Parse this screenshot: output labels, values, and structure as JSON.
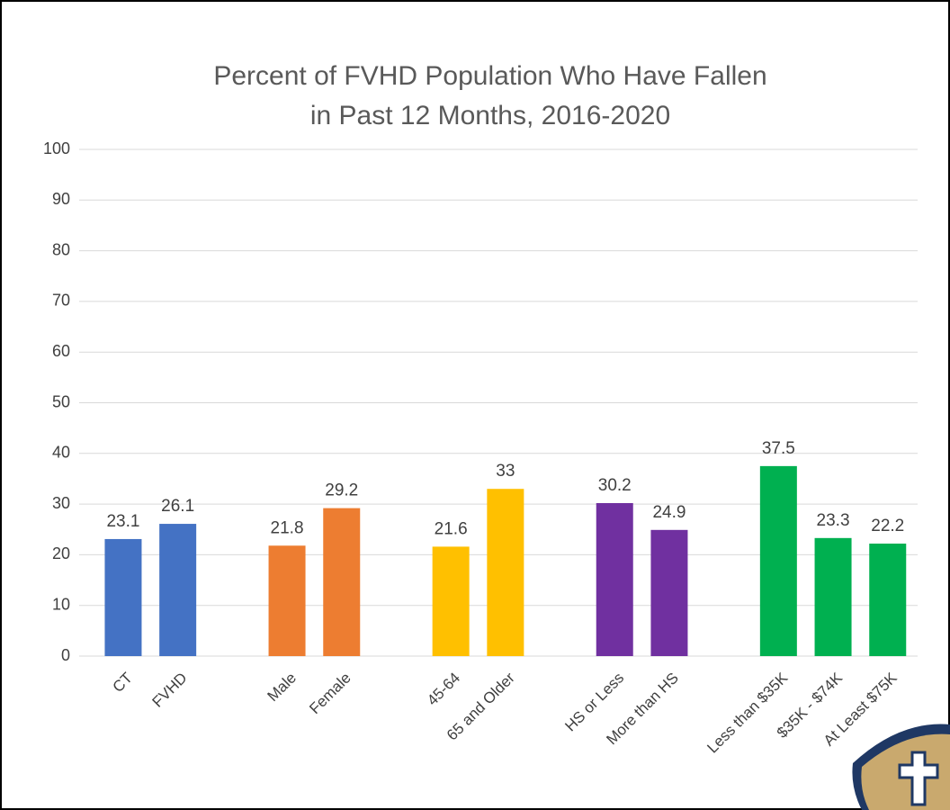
{
  "chart_data": {
    "type": "bar",
    "title": [
      "Percent of FVHD Population Who Have Fallen",
      "in Past 12 Months, 2016-2020"
    ],
    "categories": [
      "CT",
      "FVHD",
      null,
      "Male",
      "Female",
      null,
      "45-64",
      "65 and Older",
      null,
      "HS or Less",
      "More than HS",
      null,
      "Less than $35K",
      "$35K - $74K",
      "At Least $75K"
    ],
    "values": [
      23.1,
      26.1,
      null,
      21.8,
      29.2,
      null,
      21.6,
      33,
      null,
      30.2,
      24.9,
      null,
      37.5,
      23.3,
      22.2
    ],
    "colors": [
      "#4472c4",
      "#4472c4",
      null,
      "#ed7d31",
      "#ed7d31",
      null,
      "#ffc000",
      "#ffc000",
      null,
      "#7030a0",
      "#7030a0",
      null,
      "#00b050",
      "#00b050",
      "#00b050"
    ],
    "ylim": [
      0,
      100
    ],
    "yticks": [
      0,
      10,
      20,
      30,
      40,
      50,
      60,
      70,
      80,
      90,
      100
    ],
    "grid": true
  }
}
